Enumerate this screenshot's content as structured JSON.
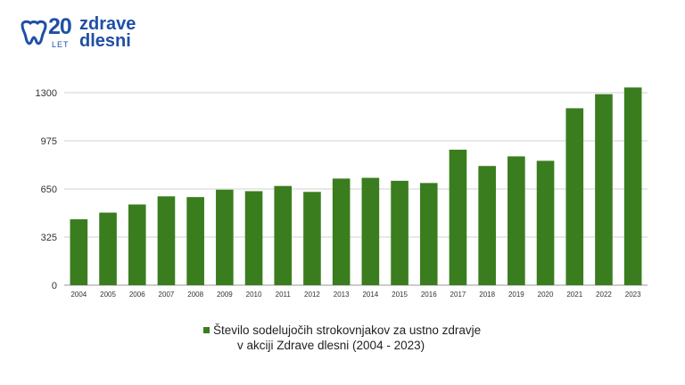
{
  "logo": {
    "number": "20",
    "let": "LET",
    "line1": "zdrave",
    "line2": "dlesni",
    "brand_color": "#1f4fa6"
  },
  "legend": {
    "line1": "Število sodelujočih strokovnjakov za ustno zdravje",
    "line2": "v akciji Zdrave dlesni (2004 - 2023)"
  },
  "chart_data": {
    "type": "bar",
    "categories": [
      "2004",
      "2005",
      "2006",
      "2007",
      "2008",
      "2009",
      "2010",
      "2011",
      "2012",
      "2013",
      "2014",
      "2015",
      "2016",
      "2017",
      "2018",
      "2019",
      "2020",
      "2021",
      "2022",
      "2023"
    ],
    "series": [
      {
        "name": "Število sodelujočih strokovnjakov za ustno zdravje v akciji Zdrave dlesni (2004 - 2023)",
        "values": [
          445,
          490,
          545,
          600,
          595,
          645,
          635,
          670,
          630,
          720,
          725,
          705,
          690,
          915,
          805,
          870,
          840,
          1195,
          1290,
          1335
        ],
        "color": "#3a7d1e"
      }
    ],
    "yticks": [
      0,
      325,
      650,
      975,
      1300
    ],
    "ylim": [
      0,
      1340
    ],
    "grid": true,
    "legend_position": "bottom",
    "xlabel": "",
    "ylabel": ""
  }
}
